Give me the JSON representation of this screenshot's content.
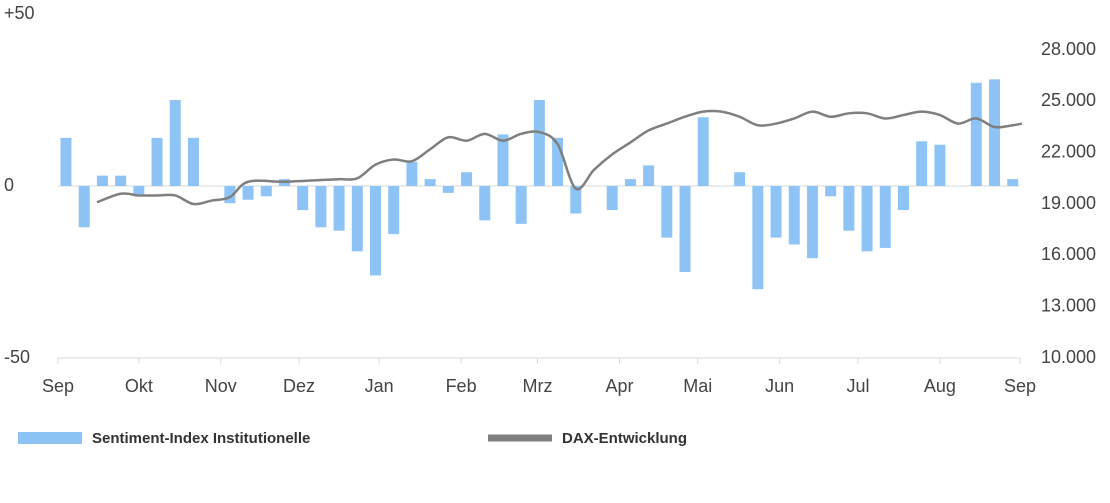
{
  "chart_data": {
    "type": "bar-line",
    "xlim": [
      -0.44,
      52.4
    ],
    "xticks": [
      {
        "value": -0.44,
        "label": "Sep"
      },
      {
        "value": 4,
        "label": "Okt"
      },
      {
        "value": 8.5,
        "label": "Nov"
      },
      {
        "value": 12.8,
        "label": "Dez"
      },
      {
        "value": 17.2,
        "label": "Jan"
      },
      {
        "value": 21.7,
        "label": "Feb"
      },
      {
        "value": 25.9,
        "label": "Mrz"
      },
      {
        "value": 30.4,
        "label": "Apr"
      },
      {
        "value": 34.7,
        "label": "Mai"
      },
      {
        "value": 39.2,
        "label": "Jun"
      },
      {
        "value": 43.5,
        "label": "Jul"
      },
      {
        "value": 48,
        "label": "Aug"
      },
      {
        "value": 52.4,
        "label": "Sep"
      }
    ],
    "ylim": [
      -50,
      50
    ],
    "yticks": [
      {
        "value": 50,
        "label": "+50"
      },
      0,
      -50
    ],
    "y2lim": [
      10000,
      28000
    ],
    "y2ticks": [
      {
        "value": 28000,
        "label": "28.000"
      },
      {
        "value": 25000,
        "label": "25.000"
      },
      {
        "value": 22000,
        "label": "22.000"
      },
      {
        "value": 19000,
        "label": "19.000"
      },
      {
        "value": 16000,
        "label": "16.000"
      },
      {
        "value": 13000,
        "label": "13.000"
      },
      {
        "value": 10000,
        "label": "10.000"
      }
    ],
    "series": [
      {
        "name": "Sentiment-Index Institutionelle",
        "color": "#8ec4f5",
        "type": "bar",
        "x": [
          0,
          1,
          2,
          3,
          4,
          5,
          6,
          7,
          9,
          10,
          11,
          12,
          13,
          14,
          15,
          16,
          17,
          18,
          19,
          20,
          21,
          22,
          23,
          24,
          25,
          26,
          27,
          28,
          30,
          31,
          32,
          33,
          34,
          35,
          37,
          38,
          39,
          40,
          41,
          42,
          43,
          44,
          45,
          46,
          47,
          48,
          50,
          51,
          52
        ],
        "values": [
          14,
          -12,
          3,
          3,
          -3,
          14,
          25,
          14,
          -5,
          -4,
          -3,
          2,
          -7,
          -12,
          -13,
          -19,
          -26,
          -14,
          7,
          2,
          -2,
          4,
          -10,
          15,
          -11,
          25,
          14,
          -8,
          -7,
          2,
          6,
          -15,
          -25,
          20,
          4,
          -30,
          -15,
          -17,
          -21,
          -3,
          -13,
          -19,
          -18,
          -7,
          13,
          12,
          30,
          31,
          2
        ]
      },
      {
        "name": "DAX-Entwicklung",
        "color": "#7f7f7f",
        "type": "line",
        "axis": "y2",
        "x": [
          1.7,
          3,
          4,
          5,
          6,
          7,
          8,
          9,
          10,
          12,
          14,
          15,
          16,
          17,
          18,
          19,
          20,
          21,
          22,
          23,
          24,
          25,
          26,
          27,
          28,
          29,
          30,
          31,
          32,
          33,
          34,
          35,
          36,
          37,
          38,
          39,
          40,
          41,
          42,
          43,
          44,
          45,
          46,
          47,
          48,
          49,
          50,
          51,
          52,
          52.5
        ],
        "values": [
          19100,
          19600,
          19500,
          19500,
          19500,
          19000,
          19200,
          19400,
          20300,
          20300,
          20400,
          20450,
          20500,
          21300,
          21600,
          21500,
          22200,
          22900,
          22700,
          23100,
          22700,
          23100,
          23200,
          22500,
          19900,
          21000,
          21900,
          22600,
          23300,
          23700,
          24100,
          24400,
          24400,
          24100,
          23600,
          23700,
          24000,
          24400,
          24100,
          24300,
          24300,
          24000,
          24200,
          24400,
          24200,
          23700,
          24000,
          23500,
          23600,
          23700
        ]
      }
    ]
  }
}
